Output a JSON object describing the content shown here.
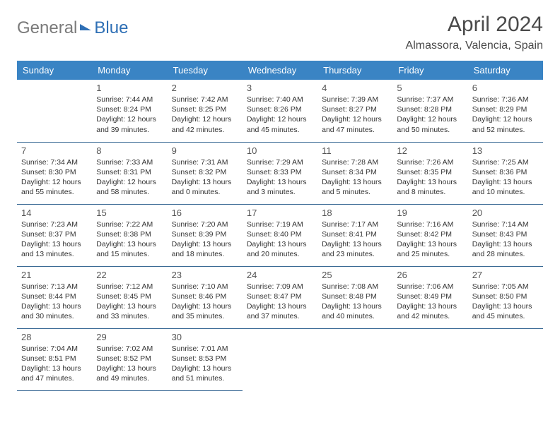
{
  "logo": {
    "text1": "General",
    "text2": "Blue"
  },
  "title": "April 2024",
  "location": "Almassora, Valencia, Spain",
  "colors": {
    "header_bg": "#3a84c4",
    "header_text": "#ffffff",
    "row_border": "#3a6a95",
    "logo_gray": "#7a7a7a",
    "logo_blue": "#2e6fb5"
  },
  "weekdays": [
    "Sunday",
    "Monday",
    "Tuesday",
    "Wednesday",
    "Thursday",
    "Friday",
    "Saturday"
  ],
  "weeks": [
    [
      null,
      {
        "n": "1",
        "sr": "Sunrise: 7:44 AM",
        "ss": "Sunset: 8:24 PM",
        "dl": "Daylight: 12 hours and 39 minutes."
      },
      {
        "n": "2",
        "sr": "Sunrise: 7:42 AM",
        "ss": "Sunset: 8:25 PM",
        "dl": "Daylight: 12 hours and 42 minutes."
      },
      {
        "n": "3",
        "sr": "Sunrise: 7:40 AM",
        "ss": "Sunset: 8:26 PM",
        "dl": "Daylight: 12 hours and 45 minutes."
      },
      {
        "n": "4",
        "sr": "Sunrise: 7:39 AM",
        "ss": "Sunset: 8:27 PM",
        "dl": "Daylight: 12 hours and 47 minutes."
      },
      {
        "n": "5",
        "sr": "Sunrise: 7:37 AM",
        "ss": "Sunset: 8:28 PM",
        "dl": "Daylight: 12 hours and 50 minutes."
      },
      {
        "n": "6",
        "sr": "Sunrise: 7:36 AM",
        "ss": "Sunset: 8:29 PM",
        "dl": "Daylight: 12 hours and 52 minutes."
      }
    ],
    [
      {
        "n": "7",
        "sr": "Sunrise: 7:34 AM",
        "ss": "Sunset: 8:30 PM",
        "dl": "Daylight: 12 hours and 55 minutes."
      },
      {
        "n": "8",
        "sr": "Sunrise: 7:33 AM",
        "ss": "Sunset: 8:31 PM",
        "dl": "Daylight: 12 hours and 58 minutes."
      },
      {
        "n": "9",
        "sr": "Sunrise: 7:31 AM",
        "ss": "Sunset: 8:32 PM",
        "dl": "Daylight: 13 hours and 0 minutes."
      },
      {
        "n": "10",
        "sr": "Sunrise: 7:29 AM",
        "ss": "Sunset: 8:33 PM",
        "dl": "Daylight: 13 hours and 3 minutes."
      },
      {
        "n": "11",
        "sr": "Sunrise: 7:28 AM",
        "ss": "Sunset: 8:34 PM",
        "dl": "Daylight: 13 hours and 5 minutes."
      },
      {
        "n": "12",
        "sr": "Sunrise: 7:26 AM",
        "ss": "Sunset: 8:35 PM",
        "dl": "Daylight: 13 hours and 8 minutes."
      },
      {
        "n": "13",
        "sr": "Sunrise: 7:25 AM",
        "ss": "Sunset: 8:36 PM",
        "dl": "Daylight: 13 hours and 10 minutes."
      }
    ],
    [
      {
        "n": "14",
        "sr": "Sunrise: 7:23 AM",
        "ss": "Sunset: 8:37 PM",
        "dl": "Daylight: 13 hours and 13 minutes."
      },
      {
        "n": "15",
        "sr": "Sunrise: 7:22 AM",
        "ss": "Sunset: 8:38 PM",
        "dl": "Daylight: 13 hours and 15 minutes."
      },
      {
        "n": "16",
        "sr": "Sunrise: 7:20 AM",
        "ss": "Sunset: 8:39 PM",
        "dl": "Daylight: 13 hours and 18 minutes."
      },
      {
        "n": "17",
        "sr": "Sunrise: 7:19 AM",
        "ss": "Sunset: 8:40 PM",
        "dl": "Daylight: 13 hours and 20 minutes."
      },
      {
        "n": "18",
        "sr": "Sunrise: 7:17 AM",
        "ss": "Sunset: 8:41 PM",
        "dl": "Daylight: 13 hours and 23 minutes."
      },
      {
        "n": "19",
        "sr": "Sunrise: 7:16 AM",
        "ss": "Sunset: 8:42 PM",
        "dl": "Daylight: 13 hours and 25 minutes."
      },
      {
        "n": "20",
        "sr": "Sunrise: 7:14 AM",
        "ss": "Sunset: 8:43 PM",
        "dl": "Daylight: 13 hours and 28 minutes."
      }
    ],
    [
      {
        "n": "21",
        "sr": "Sunrise: 7:13 AM",
        "ss": "Sunset: 8:44 PM",
        "dl": "Daylight: 13 hours and 30 minutes."
      },
      {
        "n": "22",
        "sr": "Sunrise: 7:12 AM",
        "ss": "Sunset: 8:45 PM",
        "dl": "Daylight: 13 hours and 33 minutes."
      },
      {
        "n": "23",
        "sr": "Sunrise: 7:10 AM",
        "ss": "Sunset: 8:46 PM",
        "dl": "Daylight: 13 hours and 35 minutes."
      },
      {
        "n": "24",
        "sr": "Sunrise: 7:09 AM",
        "ss": "Sunset: 8:47 PM",
        "dl": "Daylight: 13 hours and 37 minutes."
      },
      {
        "n": "25",
        "sr": "Sunrise: 7:08 AM",
        "ss": "Sunset: 8:48 PM",
        "dl": "Daylight: 13 hours and 40 minutes."
      },
      {
        "n": "26",
        "sr": "Sunrise: 7:06 AM",
        "ss": "Sunset: 8:49 PM",
        "dl": "Daylight: 13 hours and 42 minutes."
      },
      {
        "n": "27",
        "sr": "Sunrise: 7:05 AM",
        "ss": "Sunset: 8:50 PM",
        "dl": "Daylight: 13 hours and 45 minutes."
      }
    ],
    [
      {
        "n": "28",
        "sr": "Sunrise: 7:04 AM",
        "ss": "Sunset: 8:51 PM",
        "dl": "Daylight: 13 hours and 47 minutes."
      },
      {
        "n": "29",
        "sr": "Sunrise: 7:02 AM",
        "ss": "Sunset: 8:52 PM",
        "dl": "Daylight: 13 hours and 49 minutes."
      },
      {
        "n": "30",
        "sr": "Sunrise: 7:01 AM",
        "ss": "Sunset: 8:53 PM",
        "dl": "Daylight: 13 hours and 51 minutes."
      },
      null,
      null,
      null,
      null
    ]
  ]
}
